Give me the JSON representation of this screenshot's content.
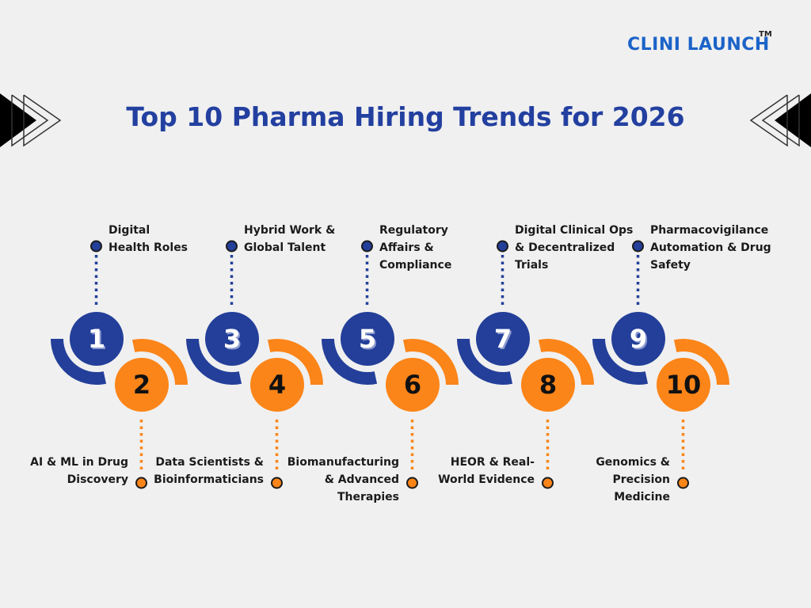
{
  "brand": {
    "name": "CLINI LAUNCH",
    "trademark": "TM",
    "color": "#1c63c8"
  },
  "title": "Top 10 Pharma Hiring Trends for 2026",
  "colors": {
    "background": "#f0f0f0",
    "blue": "#233f99",
    "orange": "#fb8519",
    "title": "#2340a0"
  },
  "decorations": {
    "left": "chevron-arrows-right",
    "right": "chevron-arrows-left"
  },
  "trends": [
    {
      "number": "1",
      "label": "Digital\nHealth Roles",
      "position": "top"
    },
    {
      "number": "2",
      "label": "AI & ML in Drug\nDiscovery",
      "position": "bottom"
    },
    {
      "number": "3",
      "label": "Hybrid Work &\nGlobal Talent",
      "position": "top"
    },
    {
      "number": "4",
      "label": "Data Scientists &\nBioinformaticians",
      "position": "bottom"
    },
    {
      "number": "5",
      "label": "Regulatory\nAffairs &\nCompliance",
      "position": "top"
    },
    {
      "number": "6",
      "label": "Biomanufacturing\n& Advanced\nTherapies",
      "position": "bottom"
    },
    {
      "number": "7",
      "label": "Digital Clinical Ops\n& Decentralized\nTrials",
      "position": "top"
    },
    {
      "number": "8",
      "label": "HEOR & Real-\nWorld Evidence",
      "position": "bottom"
    },
    {
      "number": "9",
      "label": "Pharmacovigilance\nAutomation & Drug\nSafety",
      "position": "top"
    },
    {
      "number": "10",
      "label": "Genomics &\nPrecision\nMedicine",
      "position": "bottom"
    }
  ]
}
